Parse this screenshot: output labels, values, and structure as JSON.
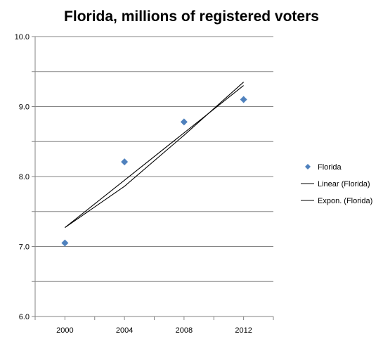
{
  "chart_data": {
    "type": "scatter",
    "title": "Florida, millions of registered voters",
    "xlabel": "",
    "ylabel": "",
    "x_ticks": [
      "2000",
      "2004",
      "2008",
      "2012"
    ],
    "y_ticks": [
      "6.0",
      "7.0",
      "8.0",
      "9.0",
      "10.0"
    ],
    "xlim": [
      1998,
      2014
    ],
    "ylim": [
      6.0,
      10.0
    ],
    "grid": "horizontal",
    "legend_position": "right",
    "series": [
      {
        "name": "Florida",
        "kind": "markers",
        "marker": "diamond",
        "color": "#4f81bd",
        "x": [
          2000,
          2004,
          2008,
          2012
        ],
        "y": [
          7.05,
          8.21,
          8.78,
          9.1
        ]
      },
      {
        "name": "Linear (Florida)",
        "kind": "trendline",
        "color": "#000000",
        "x": [
          2000,
          2012
        ],
        "y": [
          7.27,
          9.3
        ]
      },
      {
        "name": "Expon. (Florida)",
        "kind": "trendline-curve",
        "color": "#000000",
        "x": [
          2000,
          2004,
          2008,
          2012
        ],
        "y": [
          7.27,
          7.86,
          8.59,
          9.35
        ]
      }
    ]
  }
}
